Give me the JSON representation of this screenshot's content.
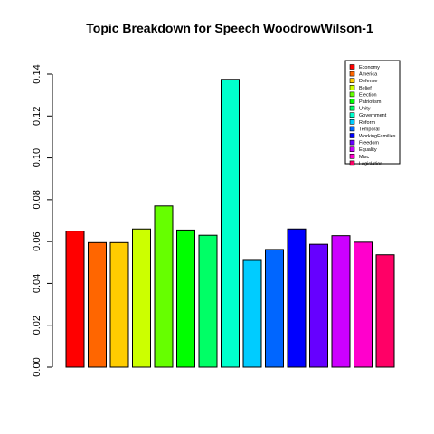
{
  "chart_data": {
    "type": "bar",
    "title": "Topic Breakdown for Speech WoodrowWilson-1",
    "xlabel": "",
    "ylabel": "",
    "ylim": [
      0,
      0.14
    ],
    "yticks": [
      "0.00",
      "0.02",
      "0.04",
      "0.06",
      "0.08",
      "0.10",
      "0.12",
      "0.14"
    ],
    "grid": false,
    "legend_position": "top-right",
    "categories": [
      "Economy",
      "America",
      "Defense",
      "Belief",
      "Election",
      "Patriotism",
      "Unity",
      "Government",
      "Reform",
      "Temporal",
      "WorkingFamilies",
      "Freedom",
      "Equality",
      "Misc",
      "Legislation"
    ],
    "values": [
      0.065,
      0.0595,
      0.0595,
      0.066,
      0.077,
      0.0655,
      0.063,
      0.1375,
      0.051,
      0.0562,
      0.066,
      0.0587,
      0.0628,
      0.0597,
      0.0537
    ],
    "colors": [
      "#FF0000",
      "#FF6600",
      "#FFCC00",
      "#CCFF00",
      "#66FF00",
      "#00FF00",
      "#00FF66",
      "#00FFCC",
      "#00CCFF",
      "#0066FF",
      "#0000FF",
      "#6600FF",
      "#CC00FF",
      "#FF00CC",
      "#FF0066"
    ]
  }
}
